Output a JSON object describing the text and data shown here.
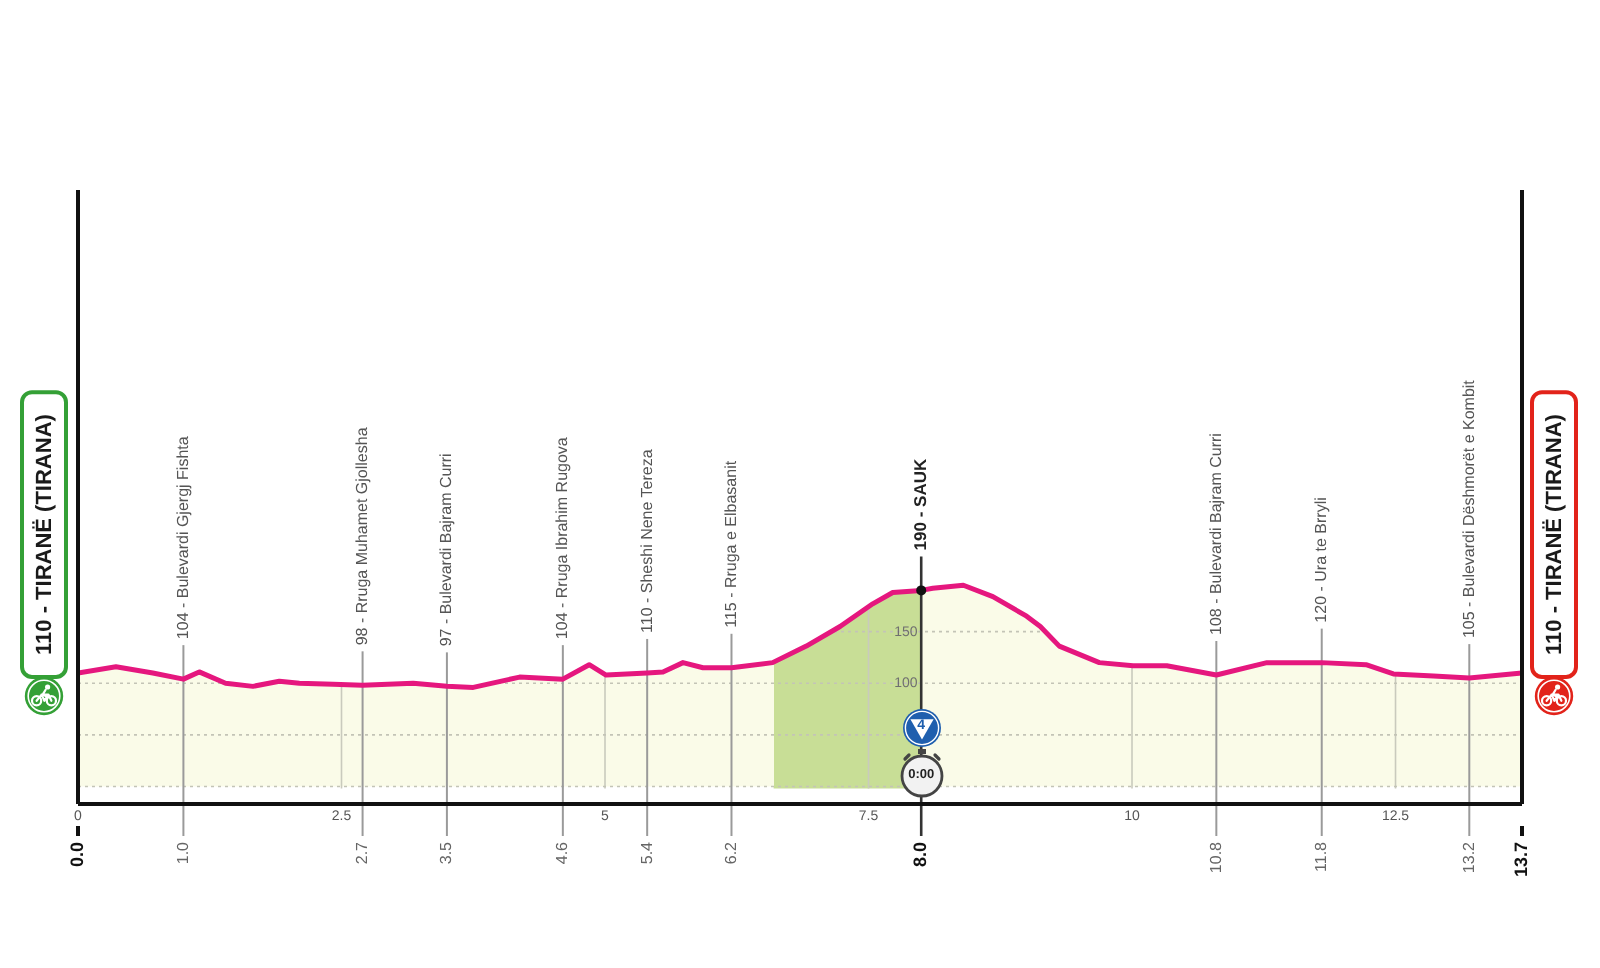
{
  "chart_data": {
    "type": "area",
    "x": [
      0,
      0.36,
      0.71,
      1,
      1.15,
      1.4,
      1.66,
      1.91,
      2.1,
      2.42,
      2.7,
      3.18,
      3.5,
      3.75,
      4.19,
      4.6,
      4.85,
      5.01,
      5.4,
      5.55,
      5.74,
      5.93,
      6.2,
      6.59,
      6.91,
      7.23,
      7.54,
      7.73,
      8,
      8.11,
      8.4,
      8.68,
      9,
      9.13,
      9.31,
      9.69,
      10.01,
      10.33,
      10.8,
      11.28,
      11.8,
      12.22,
      12.48,
      12.86,
      13.2,
      13.7
    ],
    "series": [
      {
        "color": "#e5177e",
        "values": [
          110,
          116,
          110,
          104,
          111,
          100,
          97,
          102,
          100,
          99,
          98,
          100,
          97,
          96,
          106,
          104,
          118,
          108,
          110,
          111,
          120,
          115,
          115,
          120,
          136,
          155,
          177,
          188,
          190,
          192,
          195,
          184,
          165,
          155,
          136,
          120,
          117,
          117,
          108,
          120,
          120,
          118,
          109,
          107,
          105,
          110
        ]
      }
    ],
    "xlim": [
      0,
      13.7
    ],
    "xticks": [
      0,
      2.5,
      5,
      7.5,
      10,
      12.5
    ],
    "x2lim": [
      0,
      13.7
    ],
    "x2ticks": [
      {
        "value": 0,
        "label": "0.0"
      },
      {
        "value": 1,
        "label": "1.0"
      },
      2.7,
      3.5,
      4.6,
      5.4,
      6.2,
      {
        "value": 8,
        "label": "8.0"
      },
      10.8,
      11.8,
      13.2,
      13.7
    ],
    "ylim": [
      -17,
      578
    ],
    "yticks": [
      {
        "value": 0,
        "label": null
      },
      {
        "value": 50,
        "label": null
      },
      100,
      150
    ],
    "grid": true,
    "bands": [
      {
        "axis": "x",
        "from": 6.6,
        "to": 8,
        "color": "#c8de96"
      }
    ],
    "annotations": [
      {
        "text": "110 - TIRANË (TIRANA)",
        "x": 0,
        "y": 110
      },
      {
        "text": "104 - Bulevardi Gjergj Fishta",
        "x": 1,
        "y": 104
      },
      {
        "text": "98 - Rruga Muhamet Gjollesha",
        "x": 2.7,
        "y": 98
      },
      {
        "text": "97 - Bulevardi Bajram Curri",
        "x": 3.5,
        "y": 97
      },
      {
        "text": "104 - Rruga Ibrahim Rugova",
        "x": 4.6,
        "y": 104
      },
      {
        "text": "110 - Sheshi Nene Tereza",
        "x": 5.4,
        "y": 110
      },
      {
        "text": "115 - Rruga e Elbasanit",
        "x": 6.2,
        "y": 115
      },
      {
        "text": "190 - SAUK",
        "x": 8,
        "y": 190
      },
      {
        "text": "108 - Bulevardi Bajram Curri",
        "x": 10.8,
        "y": 108
      },
      {
        "text": "120 - Ura te Brryli",
        "x": 11.8,
        "y": 120
      },
      {
        "text": "105 - Bulevardi Dëshmorët e Kombit",
        "x": 13.2,
        "y": 105
      },
      {
        "text": "110 - TIRANË (TIRANA)",
        "x": 13.7,
        "y": 110
      },
      {
        "text": "4",
        "x": 8
      },
      {
        "text": "0:00",
        "x": 8
      }
    ]
  }
}
